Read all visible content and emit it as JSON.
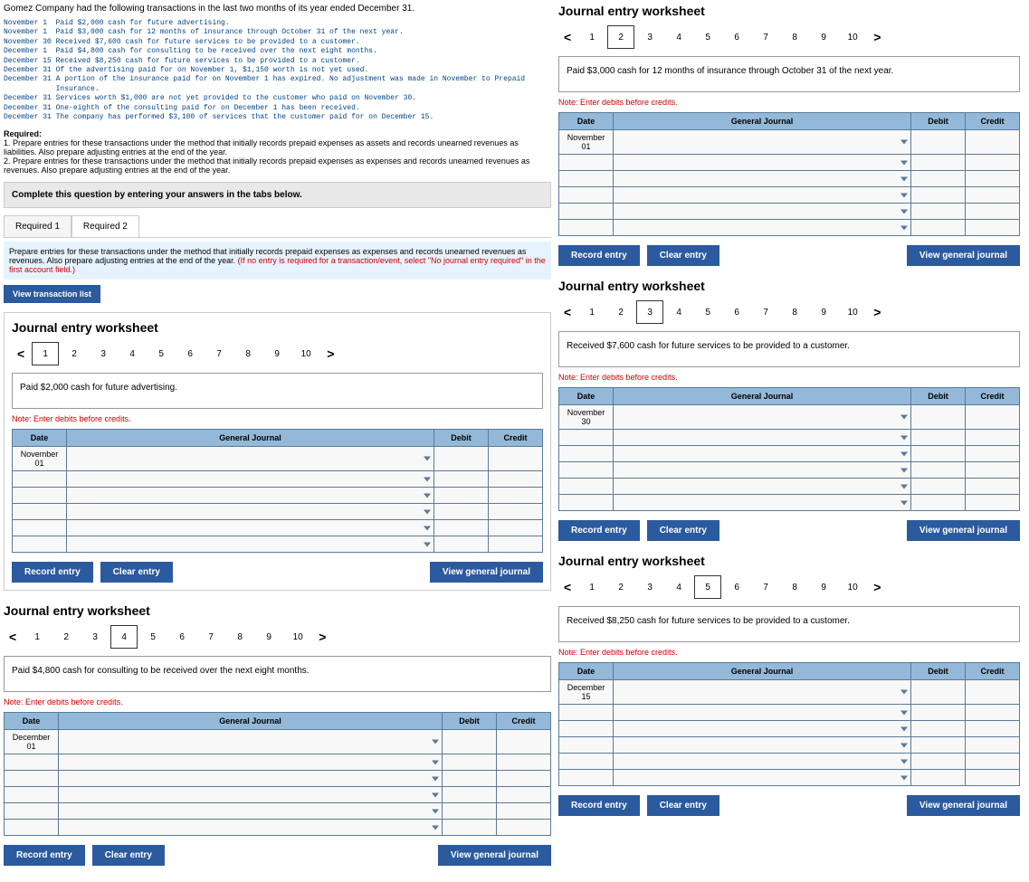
{
  "intro": "Gomez Company had the following transactions in the last two months of its year ended December 31.",
  "transactions": "November 1  Paid $2,000 cash for future advertising.\nNovember 1  Paid $3,000 cash for 12 months of insurance through October 31 of the next year.\nNovember 30 Received $7,600 cash for future services to be provided to a customer.\nDecember 1  Paid $4,800 cash for consulting to be received over the next eight months.\nDecember 15 Received $8,250 cash for future services to be provided to a customer.\nDecember 31 Of the advertising paid for on November 1, $1,150 worth is not yet used.\nDecember 31 A portion of the insurance paid for on November 1 has expired. No adjustment was made in November to Prepaid\n            Insurance.\nDecember 31 Services worth $1,000 are not yet provided to the customer who paid on November 30.\nDecember 31 One-eighth of the consulting paid for on December 1 has been received.\nDecember 31 The company has performed $3,100 of services that the customer paid for on December 15.",
  "required_heading": "Required:",
  "required_1": "1. Prepare entries for these transactions under the method that initially records prepaid expenses as assets and records unearned revenues as liabilities. Also prepare adjusting entries at the end of the year.",
  "required_2": "2. Prepare entries for these transactions under the method that initially records prepaid expenses as expenses and records unearned revenues as revenues. Also prepare adjusting entries at the end of the year.",
  "instruction": "Complete this question by entering your answers in the tabs below.",
  "tabs": {
    "t1": "Required 1",
    "t2": "Required 2"
  },
  "prepare_text": "Prepare entries for these transactions under the method that initially records prepaid expenses as expenses and records unearned revenues as revenues. Also prepare adjusting entries at the end of the year. ",
  "prepare_red": "(If no entry is required for a transaction/event, select \"No journal entry required\" in the first account field.)",
  "view_trans_btn": "View transaction list",
  "ws_title": "Journal entry worksheet",
  "ws_note": "Note: Enter debits before credits.",
  "nav_nums": [
    "1",
    "2",
    "3",
    "4",
    "5",
    "6",
    "7",
    "8",
    "9",
    "10"
  ],
  "cols": {
    "date": "Date",
    "gj": "General Journal",
    "debit": "Debit",
    "credit": "Credit"
  },
  "btns": {
    "record": "Record entry",
    "clear": "Clear entry",
    "view": "View general journal"
  },
  "ws": [
    {
      "active": "1",
      "desc": "Paid $2,000 cash for future advertising.",
      "date": "November 01"
    },
    {
      "active": "4",
      "desc": "Paid $4,800 cash for consulting to be received over the next eight months.",
      "date": "December 01"
    },
    {
      "active": "2",
      "desc": "Paid $3,000 cash for 12 months of insurance through October 31 of the next year.",
      "date": "November 01"
    },
    {
      "active": "3",
      "desc": "Received $7,600 cash for future services to be provided to a customer.",
      "date": "November 30"
    },
    {
      "active": "5",
      "desc": "Received $8,250 cash for future services to be provided to a customer.",
      "date": "December 15"
    }
  ],
  "colors": {
    "header_bg": "#94b8d8",
    "btn_bg": "#2b5a9e",
    "note_red": "#cc0000",
    "trans_blue": "#004488",
    "prepare_bg": "#e6f3ff"
  }
}
